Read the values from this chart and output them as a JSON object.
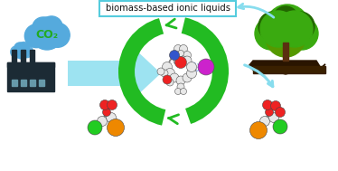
{
  "background_color": "#ffffff",
  "title_text": "biomass-based ionic liquids",
  "title_box_color": "#55ccdd",
  "title_text_color": "#111111",
  "co2_text": "CO₂",
  "co2_cloud_color": "#55aadd",
  "co2_text_color": "#22aa22",
  "factory_color": "#1c2b35",
  "tree_green1": "#3aaa10",
  "tree_green2": "#226600",
  "tree_green3": "#559900",
  "arrow_cyan_color": "#88ddee",
  "cycle_arrow_color": "#22bb22",
  "mol_gray": "#cccccc",
  "mol_white": "#e8e8e8",
  "mol_red": "#ee2222",
  "mol_blue": "#2244cc",
  "mol_magenta": "#cc22cc",
  "mol_green": "#22cc22",
  "mol_orange": "#ee8800",
  "figsize": [
    3.74,
    1.89
  ],
  "dpi": 100
}
